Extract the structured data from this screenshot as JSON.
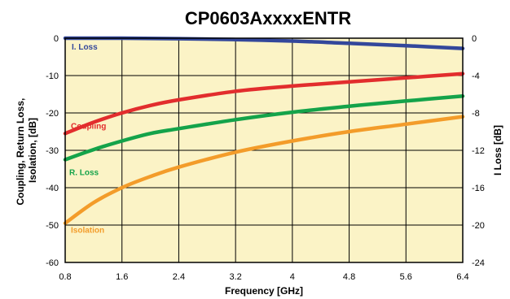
{
  "chart_data": {
    "type": "line",
    "title": "CP0603AxxxxENTR",
    "xlabel": "Frequency [GHz]",
    "ylabel_left": [
      "Coupling, Return Loss,",
      "Isolation, [dB]"
    ],
    "ylabel_right": "I Loss [dB]",
    "xlim": [
      0.8,
      6.4
    ],
    "ylim_left": [
      -60,
      0
    ],
    "ylim_right": [
      -24,
      0
    ],
    "x_ticks": [
      "0.8",
      "1.6",
      "2.4",
      "3.2",
      "4",
      "4.8",
      "5.6",
      "6.4"
    ],
    "y_left_ticks": [
      "0",
      "-10",
      "-20",
      "-30",
      "-40",
      "-50",
      "-60"
    ],
    "y_right_ticks": [
      "0",
      "-4",
      "-8",
      "-12",
      "-16",
      "-20",
      "-24"
    ],
    "grid": true,
    "background_color": "#fbf3c6",
    "series": [
      {
        "name": "I. Loss",
        "axis": "right",
        "color": "#33479b",
        "x": [
          0.8,
          1.6,
          2.4,
          3.2,
          4.0,
          4.8,
          5.6,
          6.4
        ],
        "y": [
          0.0,
          0.0,
          -0.05,
          -0.15,
          -0.3,
          -0.55,
          -0.8,
          -1.1
        ]
      },
      {
        "name": "Coupling",
        "axis": "left",
        "color": "#e22d2d",
        "x": [
          0.8,
          1.2,
          1.6,
          2.0,
          2.4,
          3.2,
          4.0,
          4.8,
          5.6,
          6.4
        ],
        "y": [
          -25.5,
          -22.5,
          -20.0,
          -18.0,
          -16.5,
          -14.2,
          -12.8,
          -11.7,
          -10.6,
          -9.5
        ]
      },
      {
        "name": "R. Loss",
        "axis": "left",
        "color": "#14a34a",
        "x": [
          0.8,
          1.2,
          1.6,
          2.0,
          2.4,
          3.2,
          4.0,
          4.8,
          5.6,
          6.4
        ],
        "y": [
          -32.5,
          -29.8,
          -27.5,
          -25.5,
          -24.2,
          -21.8,
          -19.8,
          -18.2,
          -16.8,
          -15.5
        ]
      },
      {
        "name": "Isolation",
        "axis": "left",
        "color": "#f39c2a",
        "x": [
          0.8,
          1.2,
          1.6,
          2.0,
          2.4,
          3.2,
          4.0,
          4.8,
          5.6,
          6.4
        ],
        "y": [
          -49.5,
          -44.0,
          -40.0,
          -37.0,
          -34.5,
          -30.5,
          -27.5,
          -25.0,
          -23.0,
          -21.0
        ]
      }
    ]
  }
}
